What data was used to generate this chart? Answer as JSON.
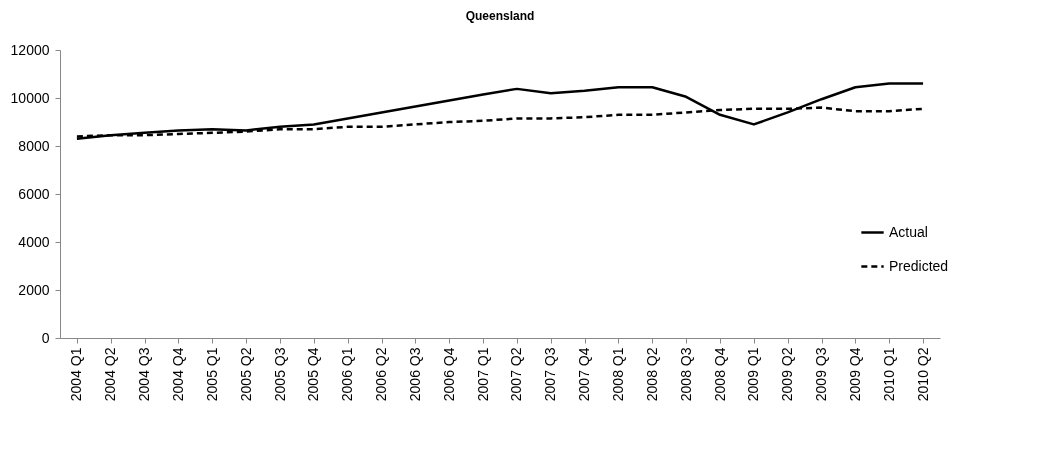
{
  "chart_data": {
    "type": "line",
    "title": "Queensland",
    "categories": [
      "2004 Q1",
      "2004 Q2",
      "2004 Q3",
      "2004 Q4",
      "2005 Q1",
      "2005 Q2",
      "2005 Q3",
      "2005 Q4",
      "2006 Q1",
      "2006 Q2",
      "2006 Q3",
      "2006 Q4",
      "2007 Q1",
      "2007 Q2",
      "2007 Q3",
      "2007 Q4",
      "2008 Q1",
      "2008 Q2",
      "2008 Q3",
      "2008 Q4",
      "2009 Q1",
      "2009 Q2",
      "2009 Q3",
      "2009 Q4",
      "2010 Q1",
      "2010 Q2"
    ],
    "series": [
      {
        "name": "Actual",
        "color": "#000000",
        "line_style": "solid",
        "values": [
          8300,
          8450,
          8550,
          8650,
          8700,
          8650,
          8800,
          8900,
          9150,
          9400,
          9650,
          9900,
          10150,
          10380,
          10200,
          10300,
          10450,
          10450,
          10050,
          9300,
          8900,
          9400,
          9950,
          10450,
          10600,
          10600
        ]
      },
      {
        "name": "Predicted",
        "color": "#000000",
        "line_style": "dashed",
        "values": [
          8400,
          8450,
          8450,
          8500,
          8550,
          8600,
          8700,
          8700,
          8800,
          8800,
          8900,
          9000,
          9050,
          9150,
          9150,
          9200,
          9300,
          9300,
          9400,
          9500,
          9550,
          9550,
          9600,
          9450,
          9450,
          9550
        ]
      }
    ],
    "ylim": [
      0,
      12000
    ],
    "yticks": [
      0,
      2000,
      4000,
      6000,
      8000,
      10000,
      12000
    ],
    "grid": false,
    "legend": "right",
    "marker": "none"
  }
}
